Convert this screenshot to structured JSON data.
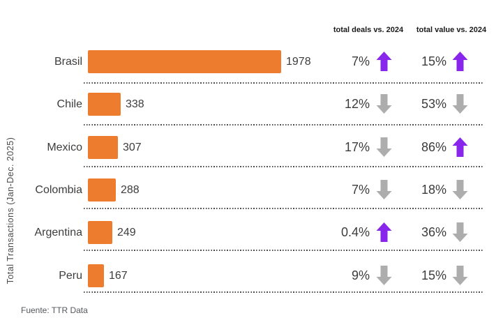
{
  "chart_data": {
    "type": "bar",
    "orientation": "horizontal",
    "ylabel": "Total Transactions (Jan-Dec. 2025)",
    "columns": {
      "deals": "total deals vs. 2024",
      "value": "total value vs. 2024"
    },
    "categories": [
      "Brasil",
      "Chile",
      "Mexico",
      "Colombia",
      "Argentina",
      "Peru"
    ],
    "values": [
      1978,
      338,
      307,
      288,
      249,
      167
    ],
    "rows": [
      {
        "country": "Brasil",
        "transactions": 1978,
        "deals_pct": "7%",
        "deals_dir": "up",
        "value_pct": "15%",
        "value_dir": "up"
      },
      {
        "country": "Chile",
        "transactions": 338,
        "deals_pct": "12%",
        "deals_dir": "down",
        "value_pct": "53%",
        "value_dir": "down"
      },
      {
        "country": "Mexico",
        "transactions": 307,
        "deals_pct": "17%",
        "deals_dir": "down",
        "value_pct": "86%",
        "value_dir": "up"
      },
      {
        "country": "Colombia",
        "transactions": 288,
        "deals_pct": "7%",
        "deals_dir": "down",
        "value_pct": "18%",
        "value_dir": "down"
      },
      {
        "country": "Argentina",
        "transactions": 249,
        "deals_pct": "0.4%",
        "deals_dir": "up",
        "value_pct": "36%",
        "value_dir": "down"
      },
      {
        "country": "Peru",
        "transactions": 167,
        "deals_pct": "9%",
        "deals_dir": "down",
        "value_pct": "15%",
        "value_dir": "down"
      }
    ],
    "source": "Fuente: TTR Data",
    "colors": {
      "bar": "#ED7C2F",
      "up": "#8826EC",
      "down": "#ADADAD"
    },
    "legend": "none",
    "grid": "dotted row separators"
  }
}
